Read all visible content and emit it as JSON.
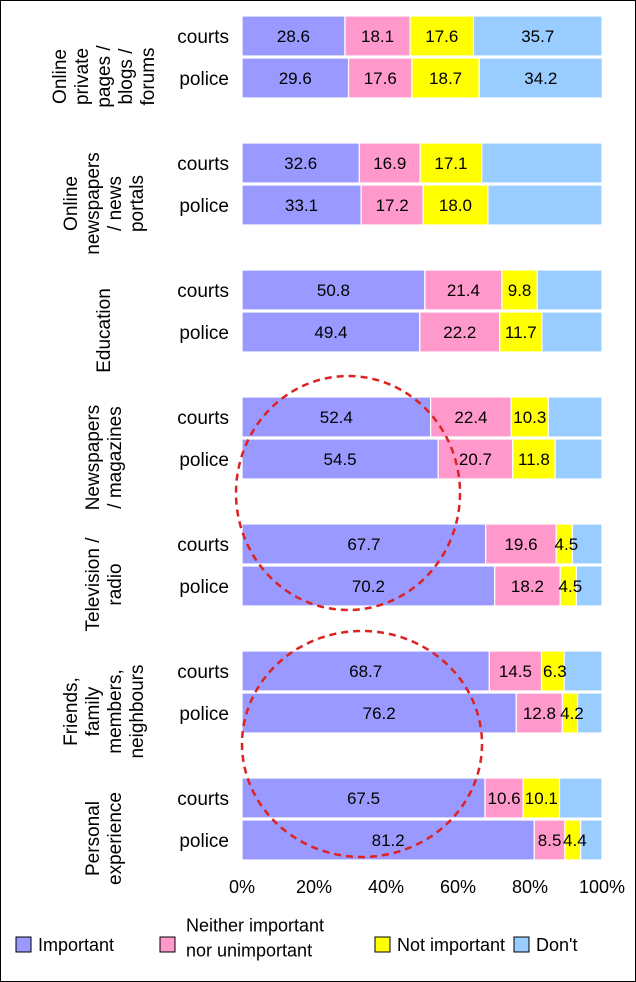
{
  "chart_data": {
    "type": "stacked-bar-horizontal",
    "xlim": [
      0,
      100
    ],
    "x_ticks": [
      "0%",
      "20%",
      "40%",
      "60%",
      "80%",
      "100%"
    ],
    "grid": false,
    "legend_position": "bottom",
    "series": [
      {
        "name": "Important",
        "color": "#9999ff"
      },
      {
        "name": "Neither important nor unimportant",
        "color": "#ff99cc"
      },
      {
        "name": "Not important",
        "color": "#ffff00"
      },
      {
        "name": "Don't",
        "color": "#99ccff"
      }
    ],
    "groups": [
      {
        "label_lines": [
          "Online",
          "private",
          "pages /",
          "blogs /",
          "forums"
        ],
        "bars": [
          {
            "label": "courts",
            "values": [
              28.6,
              18.1,
              17.6,
              35.7
            ],
            "labels": [
              "28.6",
              "18.1",
              "17.6",
              "35.7"
            ]
          },
          {
            "label": "police",
            "values": [
              29.6,
              17.6,
              18.7,
              34.2
            ],
            "labels": [
              "29.6",
              "17.6",
              "18.7",
              "34.2"
            ]
          }
        ]
      },
      {
        "label_lines": [
          "Online",
          "newspapers",
          "/ news",
          "portals"
        ],
        "bars": [
          {
            "label": "courts",
            "values": [
              32.6,
              16.9,
              17.1,
              33.4
            ],
            "labels": [
              "32.6",
              "16.9",
              "17.1",
              ""
            ]
          },
          {
            "label": "police",
            "values": [
              33.1,
              17.2,
              18.0,
              31.7
            ],
            "labels": [
              "33.1",
              "17.2",
              "18.0",
              ""
            ]
          }
        ]
      },
      {
        "label_lines": [
          "Education"
        ],
        "bars": [
          {
            "label": "courts",
            "values": [
              50.8,
              21.4,
              9.8,
              18.0
            ],
            "labels": [
              "50.8",
              "21.4",
              "9.8",
              ""
            ]
          },
          {
            "label": "police",
            "values": [
              49.4,
              22.2,
              11.7,
              16.7
            ],
            "labels": [
              "49.4",
              "22.2",
              "11.7",
              ""
            ]
          }
        ]
      },
      {
        "label_lines": [
          "Newspapers",
          "/ magazines"
        ],
        "bars": [
          {
            "label": "courts",
            "values": [
              52.4,
              22.4,
              10.3,
              14.9
            ],
            "labels": [
              "52.4",
              "22.4",
              "10.3",
              ""
            ]
          },
          {
            "label": "police",
            "values": [
              54.5,
              20.7,
              11.8,
              13.0
            ],
            "labels": [
              "54.5",
              "20.7",
              "11.8",
              ""
            ]
          }
        ]
      },
      {
        "label_lines": [
          "Television /",
          "radio"
        ],
        "bars": [
          {
            "label": "courts",
            "values": [
              67.7,
              19.6,
              4.5,
              8.2
            ],
            "labels": [
              "67.7",
              "19.6",
              "4.5",
              ""
            ]
          },
          {
            "label": "police",
            "values": [
              70.2,
              18.2,
              4.5,
              7.1
            ],
            "labels": [
              "70.2",
              "18.2",
              "4.5",
              ""
            ]
          }
        ]
      },
      {
        "label_lines": [
          "Friends,",
          "family",
          "members,",
          "neighbours"
        ],
        "bars": [
          {
            "label": "courts",
            "values": [
              68.7,
              14.5,
              6.3,
              10.5
            ],
            "labels": [
              "68.7",
              "14.5",
              "6.3",
              ""
            ]
          },
          {
            "label": "police",
            "values": [
              76.2,
              12.8,
              4.2,
              6.8
            ],
            "labels": [
              "76.2",
              "12.8",
              "4.2",
              ""
            ]
          }
        ]
      },
      {
        "label_lines": [
          "Personal",
          "experience"
        ],
        "bars": [
          {
            "label": "courts",
            "values": [
              67.5,
              10.6,
              10.1,
              11.8
            ],
            "labels": [
              "67.5",
              "10.6",
              "10.1",
              ""
            ]
          },
          {
            "label": "police",
            "values": [
              81.2,
              8.5,
              4.4,
              5.9
            ],
            "labels": [
              "81.2",
              "8.5",
              "4.4",
              ""
            ]
          }
        ]
      }
    ],
    "annotations": [
      "red-dashed-circle",
      "red-dashed-circle"
    ]
  },
  "legend": {
    "items": [
      {
        "lines": [
          "Important"
        ],
        "color": "#9999ff"
      },
      {
        "lines": [
          "Neither important",
          "nor unimportant"
        ],
        "color": "#ff99cc"
      },
      {
        "lines": [
          "Not important"
        ],
        "color": "#ffff00"
      },
      {
        "lines": [
          "Don't"
        ],
        "color": "#99ccff"
      }
    ]
  }
}
